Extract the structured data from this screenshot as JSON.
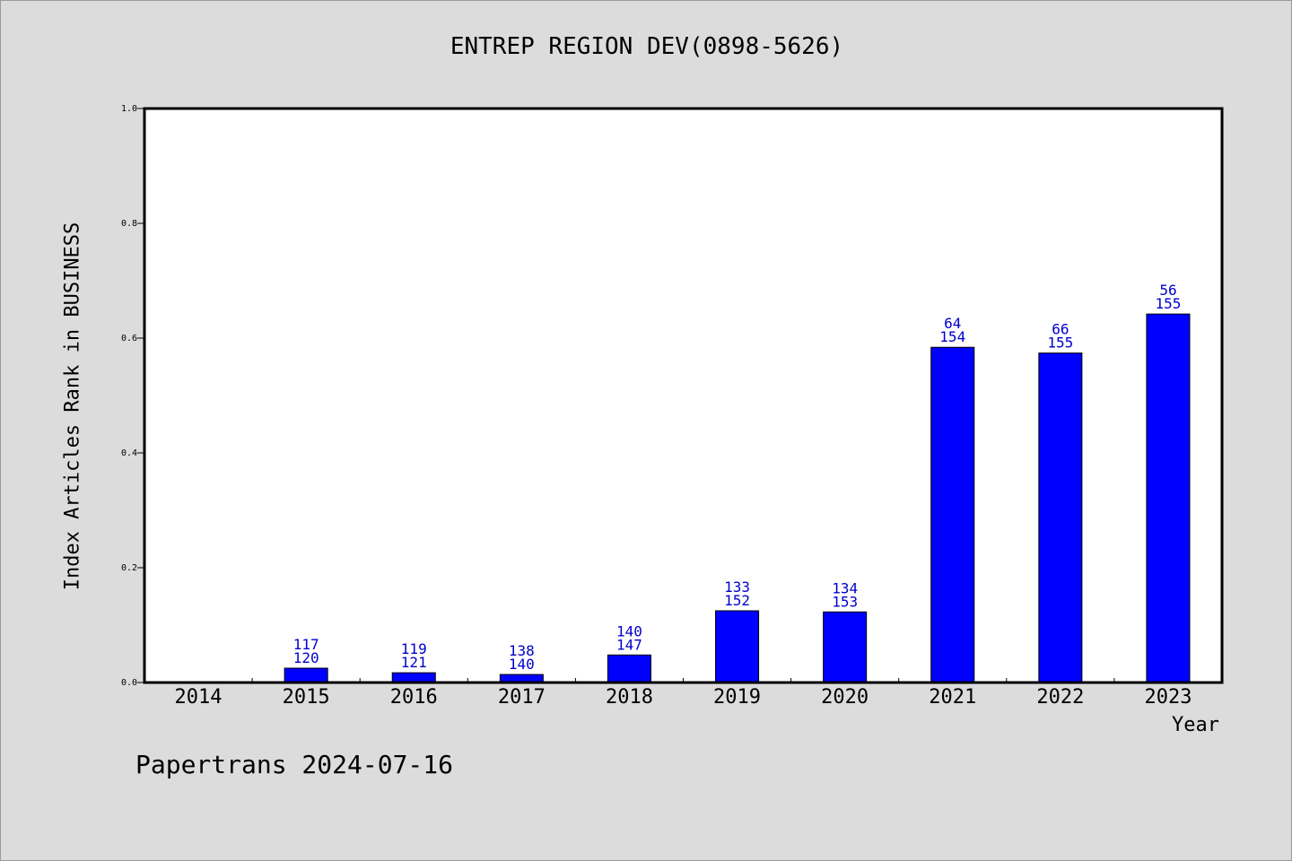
{
  "chart_data": {
    "type": "bar",
    "title": "ENTREP REGION DEV(0898-5626)",
    "xlabel": "Year",
    "ylabel": "Index Articles Rank in BUSINESS",
    "ylim": [
      0,
      1.0
    ],
    "yticks": [
      "0.0",
      "0.2",
      "0.4",
      "0.6",
      "0.8",
      "1.0"
    ],
    "categories": [
      "2014",
      "2015",
      "2016",
      "2017",
      "2018",
      "2019",
      "2020",
      "2021",
      "2022",
      "2023"
    ],
    "values": [
      0,
      0.025,
      0.017,
      0.014,
      0.048,
      0.125,
      0.123,
      0.584,
      0.574,
      0.642
    ],
    "label_top": [
      "",
      "117",
      "119",
      "138",
      "140",
      "133",
      "134",
      "64",
      "66",
      "56"
    ],
    "label_bottom": [
      "",
      "120",
      "121",
      "140",
      "147",
      "152",
      "153",
      "154",
      "155",
      "155"
    ],
    "bar_color": "#0000ff",
    "label_color": "#0000cc",
    "grid": false
  },
  "footer": "Papertrans 2024-07-16"
}
